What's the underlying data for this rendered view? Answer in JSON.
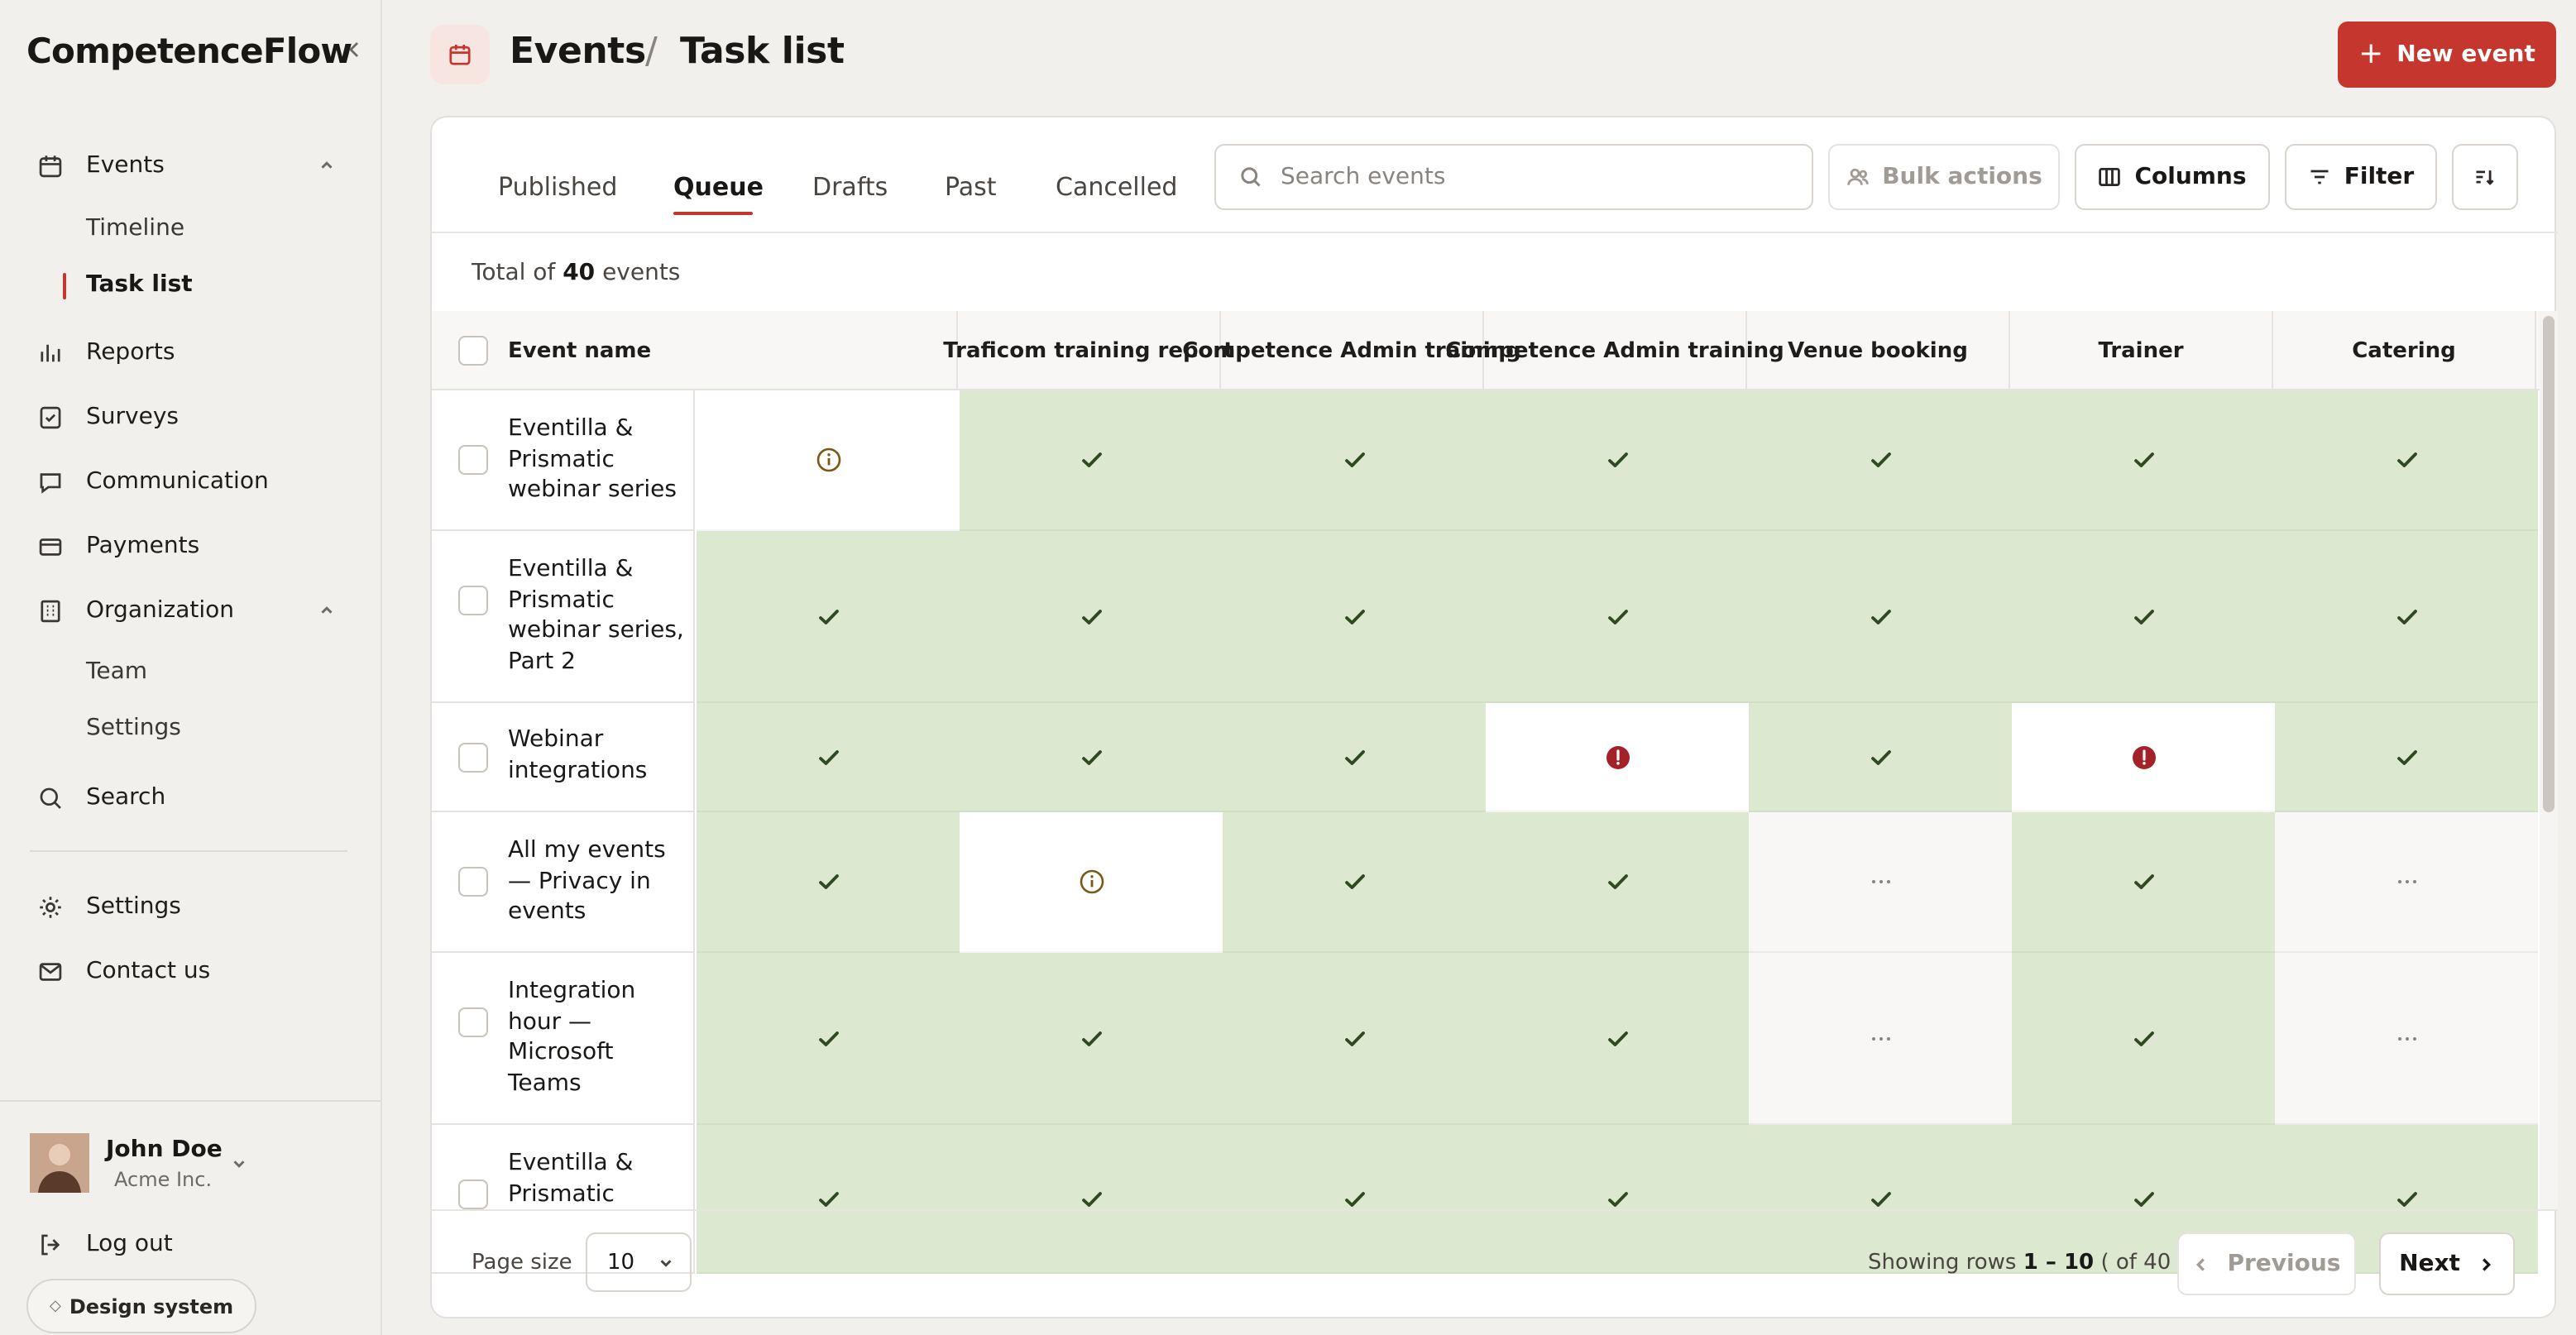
{
  "app": {
    "brand": "CompetenceFlow"
  },
  "sidebar": {
    "items": [
      {
        "label": "Events",
        "icon": "calendar-icon",
        "expanded": true
      },
      {
        "label": "Timeline"
      },
      {
        "label": "Task list",
        "active": true
      },
      {
        "label": "Reports",
        "icon": "bar-chart-icon"
      },
      {
        "label": "Surveys",
        "icon": "survey-icon"
      },
      {
        "label": "Communication",
        "icon": "chat-icon"
      },
      {
        "label": "Payments",
        "icon": "credit-card-icon"
      },
      {
        "label": "Organization",
        "icon": "building-icon",
        "expanded": true
      },
      {
        "label": "Team"
      },
      {
        "label": "Settings"
      },
      {
        "label": "Search",
        "icon": "search-icon"
      },
      {
        "label": "Settings",
        "icon": "gear-icon"
      },
      {
        "label": "Contact us",
        "icon": "mail-icon"
      }
    ],
    "user": {
      "name": "John Doe",
      "org": "Acme Inc."
    },
    "logout": "Log out",
    "design_system": "Design system"
  },
  "header": {
    "breadcrumb_root": "Events",
    "separator": "/",
    "title": "Task list",
    "new_event": "New event",
    "accent": "#c5372e"
  },
  "tabs": [
    "Published",
    "Queue",
    "Drafts",
    "Past",
    "Cancelled"
  ],
  "active_tab": "Queue",
  "search": {
    "placeholder": "Search events"
  },
  "toolbar": {
    "bulk": "Bulk actions",
    "columns": "Columns",
    "filter": "Filter"
  },
  "total": {
    "prefix": "Total of",
    "count": "40",
    "suffix": "events"
  },
  "table": {
    "name_header": "Event name",
    "columns": [
      "",
      "Traficom training report",
      "Competence Admin training",
      "Competence Admin training",
      "Venue booking",
      "Trainer",
      "Catering"
    ],
    "rows": [
      {
        "name": "Eventilla & Prismatic webinar series",
        "status": [
          "info",
          "ok",
          "ok",
          "ok",
          "ok",
          "ok",
          "ok"
        ]
      },
      {
        "name": "Eventilla & Prismatic webinar series, Part 2",
        "status": [
          "ok",
          "ok",
          "ok",
          "ok",
          "ok",
          "ok",
          "ok"
        ]
      },
      {
        "name": "Webinar integrations",
        "status": [
          "ok",
          "ok",
          "ok",
          "error",
          "ok",
          "error",
          "ok"
        ]
      },
      {
        "name": "All my events — Privacy in events",
        "status": [
          "ok",
          "info",
          "ok",
          "ok",
          "pending",
          "ok",
          "pending"
        ]
      },
      {
        "name": "Integration hour — Microsoft Teams",
        "status": [
          "ok",
          "ok",
          "ok",
          "ok",
          "pending",
          "ok",
          "pending"
        ]
      },
      {
        "name": "Eventilla & Prismatic",
        "status": [
          "ok",
          "ok",
          "ok",
          "ok",
          "ok",
          "ok",
          "ok"
        ]
      }
    ],
    "status_colors": {
      "ok": "#dce8cf",
      "info": "#f7eab6",
      "error": "#f0cccc",
      "pending": "#f8f7f5"
    }
  },
  "footer": {
    "page_size_label": "Page size",
    "page_size": "10",
    "showing_prefix": "Showing rows",
    "showing_range": "1 – 10",
    "showing_suffix": "( of 40 )",
    "previous": "Previous",
    "next": "Next"
  }
}
